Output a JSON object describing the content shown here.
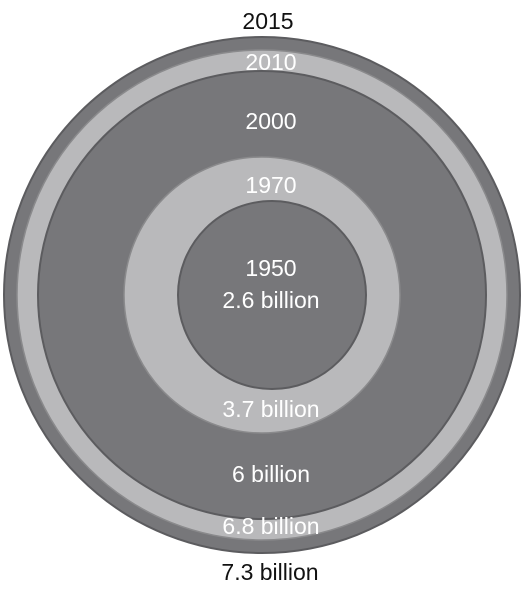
{
  "diagram": {
    "type": "nested-circles",
    "rings": [
      {
        "year": "2015",
        "population": "7.3 billion",
        "shade": "dark"
      },
      {
        "year": "2010",
        "population": "6.8 billion",
        "shade": "light"
      },
      {
        "year": "2000",
        "population": "6 billion",
        "shade": "dark"
      },
      {
        "year": "1970",
        "population": "3.7 billion",
        "shade": "light"
      },
      {
        "year": "1950",
        "population": "2.6 billion",
        "shade": "dark"
      }
    ],
    "colors": {
      "dark": "#77777a",
      "light": "#b9b9bb",
      "label_inside": "#ffffff",
      "label_outside": "#111111"
    }
  }
}
